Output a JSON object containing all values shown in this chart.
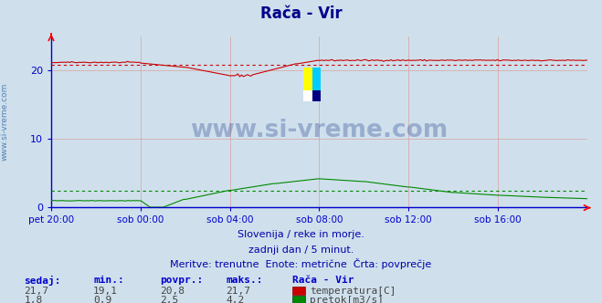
{
  "title": "Rača - Vir",
  "background_color": "#cfe0ec",
  "plot_bg_color": "#cfe0ec",
  "x_labels": [
    "pet 20:00",
    "sob 00:00",
    "sob 04:00",
    "sob 08:00",
    "sob 12:00",
    "sob 16:00"
  ],
  "ylim": [
    0,
    25
  ],
  "yticks": [
    0,
    10,
    20
  ],
  "grid_color_v": "#d8a0a0",
  "grid_color_h": "#d8a0a0",
  "temp_color": "#cc0000",
  "flow_color": "#008800",
  "height_color": "#0000cc",
  "axis_color": "#0000cc",
  "avg_temp": 20.8,
  "avg_flow": 2.5,
  "footer_line1": "Slovenija / reke in morje.",
  "footer_line2": "zadnji dan / 5 minut.",
  "footer_line3": "Meritve: trenutne  Enote: metrične  Črta: povprečje",
  "table_headers": [
    "sedaj:",
    "min.:",
    "povpr.:",
    "maks.:",
    "Rača - Vir"
  ],
  "table_row1": [
    "21,7",
    "19,1",
    "20,8",
    "21,7"
  ],
  "table_row2": [
    "1,8",
    "0,9",
    "2,5",
    "4,2"
  ],
  "label_temp": "temperatura[C]",
  "label_flow": "pretok[m3/s]",
  "watermark": "www.si-vreme.com",
  "left_label": "www.si-vreme.com",
  "text_color": "#0000aa",
  "table_value_color": "#444444"
}
